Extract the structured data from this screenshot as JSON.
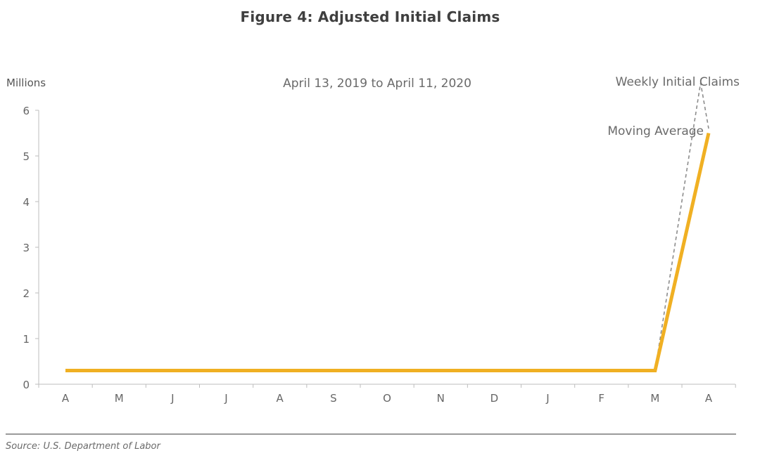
{
  "title": "Figure 4:  Adjusted Initial Claims",
  "source": "Source: U.S. Department of Labor",
  "chart_data": {
    "type": "line",
    "subtitle": "April 13, 2019 to April 11, 2020",
    "ylabel": "Millions",
    "ylim": [
      0,
      6
    ],
    "yticks": [
      0,
      1,
      2,
      3,
      4,
      5,
      6
    ],
    "categories": [
      "A",
      "M",
      "J",
      "J",
      "A",
      "S",
      "O",
      "N",
      "D",
      "J",
      "F",
      "M",
      "A"
    ],
    "grid": false,
    "series": [
      {
        "name": "Weekly Initial Claims",
        "style": "dashed",
        "color": "#8c8c8c",
        "x": [
          0,
          11,
          11.85,
          12
        ],
        "y": [
          0.3,
          0.3,
          6.6,
          5.6
        ]
      },
      {
        "name": "Moving Average",
        "style": "solid",
        "color": "#f0b023",
        "x": [
          0,
          11,
          12
        ],
        "y": [
          0.3,
          0.3,
          5.5
        ]
      }
    ]
  }
}
